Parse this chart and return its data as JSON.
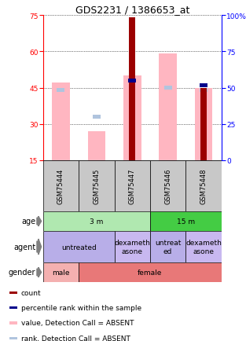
{
  "title": "GDS2231 / 1386653_at",
  "samples": [
    "GSM75444",
    "GSM75445",
    "GSM75447",
    "GSM75446",
    "GSM75448"
  ],
  "left_ylim": [
    15,
    75
  ],
  "left_yticks": [
    15,
    30,
    45,
    60,
    75
  ],
  "right_ylim": [
    0,
    100
  ],
  "right_yticks": [
    0,
    25,
    50,
    75,
    100
  ],
  "right_yticklabels": [
    "0",
    "25",
    "50",
    "75",
    "100%"
  ],
  "bar_data": {
    "count_heights": [
      0,
      0,
      59,
      0,
      30
    ],
    "count_color": "#9b0000",
    "value_tops": [
      47,
      27,
      50,
      59,
      45
    ],
    "value_color": "#ffb6c1",
    "rank_y": [
      44,
      33,
      null,
      45,
      44
    ],
    "rank_color": "#b0c4de",
    "pct_rank_y": [
      null,
      null,
      48,
      null,
      46
    ],
    "pct_rank_color": "#00008b"
  },
  "age_row": {
    "groups": [
      {
        "label": "3 m",
        "cols": [
          0,
          1,
          2
        ],
        "color": "#b0e8b0"
      },
      {
        "label": "15 m",
        "cols": [
          3,
          4
        ],
        "color": "#44cc44"
      }
    ]
  },
  "agent_row": {
    "groups": [
      {
        "label": "untreated",
        "cols": [
          0,
          1
        ],
        "color": "#b8aee8"
      },
      {
        "label": "dexameth\nasone",
        "cols": [
          2
        ],
        "color": "#c8b8f0"
      },
      {
        "label": "untreat\ned",
        "cols": [
          3
        ],
        "color": "#b8aee8"
      },
      {
        "label": "dexameth\nasone",
        "cols": [
          4
        ],
        "color": "#c8b8f0"
      }
    ]
  },
  "gender_row": {
    "groups": [
      {
        "label": "male",
        "cols": [
          0
        ],
        "color": "#f4b0b0"
      },
      {
        "label": "female",
        "cols": [
          1,
          2,
          3,
          4
        ],
        "color": "#e87878"
      }
    ]
  },
  "legend": [
    {
      "color": "#9b0000",
      "label": "count"
    },
    {
      "color": "#00008b",
      "label": "percentile rank within the sample"
    },
    {
      "color": "#ffb6c1",
      "label": "value, Detection Call = ABSENT"
    },
    {
      "color": "#b0c4de",
      "label": "rank, Detection Call = ABSENT"
    }
  ],
  "title_fontsize": 9,
  "tick_fontsize": 6.5,
  "label_fontsize": 6.5,
  "sample_fontsize": 6,
  "row_label_fontsize": 7,
  "legend_fontsize": 6.5,
  "chart_bg": "#ffffff",
  "grid_color": "#000000"
}
